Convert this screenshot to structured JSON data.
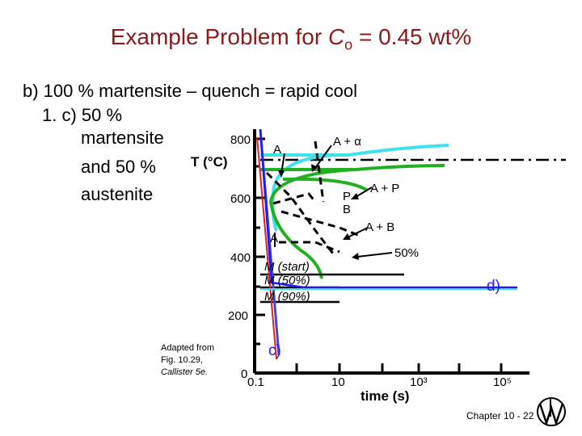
{
  "slide": {
    "title_prefix": "Example Problem for ",
    "title_var": "C",
    "title_sub": "o",
    "title_suffix": " = 0.45 wt%",
    "line_b": "b) 100 % martensite – quench = rapid cool",
    "line_1_prefix": "1.  c) 50 %",
    "line_1_cont": [
      "martensite",
      "and 50 %",
      "austenite"
    ],
    "credit": [
      "Adapted from",
      "Fig. 10.29,",
      "Callister 5e."
    ],
    "footer": "Chapter 10 - 22"
  },
  "diagram": {
    "y_axis_label": "T (°C)",
    "x_axis_label": "time (s)",
    "y_ticks": [
      "800",
      "600",
      "400",
      "200",
      "0"
    ],
    "x_ticks": [
      "0.1",
      "10",
      "10³",
      "10⁵"
    ],
    "region_labels": {
      "austenite_top": "A",
      "a_alpha": "A + α",
      "a_p": "A + P",
      "p": "P",
      "b": "B",
      "a_b": "A + B",
      "a_mid": "A",
      "fifty_pct": "50%",
      "m_start": "M (start)",
      "m_50": "M (50%)",
      "m_90": "M (90%)"
    },
    "path_labels": {
      "c": "c)",
      "d": "d)"
    },
    "colors": {
      "title": "#8b1a1a",
      "curve_cyan": "#40e0f0",
      "curve_green": "#22b022",
      "quench_blue": "#4848c8",
      "quench_red": "#e02020",
      "path_d": "#1a1aff"
    }
  }
}
